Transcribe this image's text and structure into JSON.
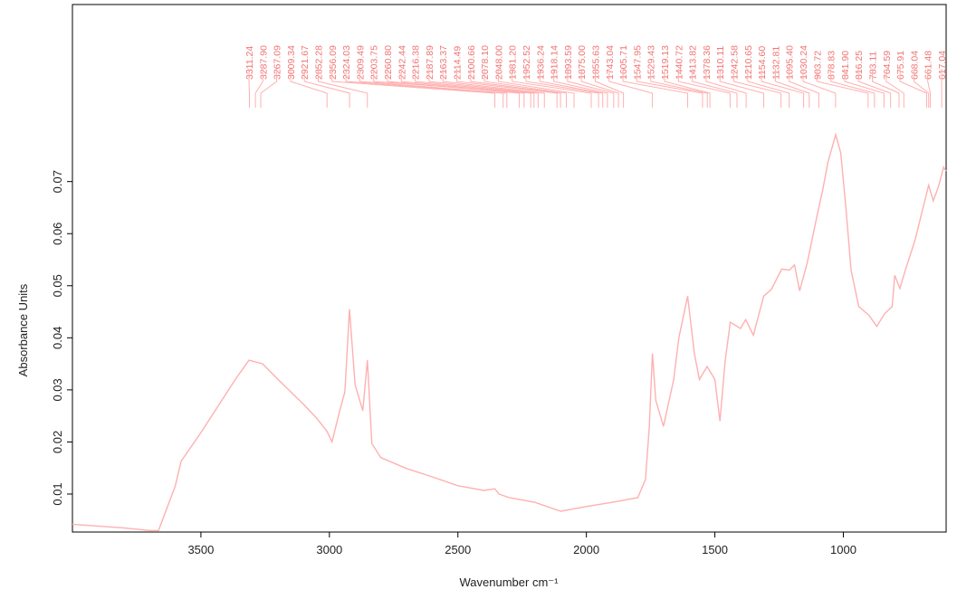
{
  "chart_data": {
    "type": "line",
    "xlabel": "Wavenumber cm⁻¹",
    "ylabel": "Absorbance Units",
    "color": "#ffb0b0",
    "peak_color": "#f07474",
    "xlim": [
      4000,
      600
    ],
    "ylim": [
      0.0027,
      0.104
    ],
    "xticks": [
      3500,
      3000,
      2500,
      2000,
      1500,
      1000
    ],
    "yticks": [
      0.01,
      0.02,
      0.03,
      0.04,
      0.05,
      0.06,
      0.07
    ],
    "x": [
      4000,
      3800,
      3700,
      3665,
      3600,
      3577,
      3500,
      3366,
      3313,
      3260,
      3200,
      3100,
      3050,
      3009,
      2990,
      2960,
      2940,
      2922,
      2900,
      2870,
      2852,
      2835,
      2800,
      2700,
      2600,
      2500,
      2400,
      2356,
      2340,
      2300,
      2200,
      2100,
      2000,
      1900,
      1800,
      1770,
      1755,
      1743,
      1730,
      1700,
      1660,
      1640,
      1606,
      1580,
      1560,
      1530,
      1500,
      1480,
      1460,
      1440,
      1400,
      1380,
      1350,
      1310,
      1280,
      1240,
      1210,
      1190,
      1170,
      1140,
      1100,
      1080,
      1060,
      1030,
      1010,
      990,
      970,
      940,
      900,
      870,
      840,
      810,
      800,
      780,
      760,
      720,
      690,
      668,
      650,
      630,
      610,
      600
    ],
    "values": [
      0.0042,
      0.0035,
      0.003,
      0.003,
      0.0115,
      0.0163,
      0.0218,
      0.032,
      0.0357,
      0.035,
      0.032,
      0.0272,
      0.0246,
      0.022,
      0.02,
      0.026,
      0.0296,
      0.0455,
      0.031,
      0.026,
      0.0357,
      0.0197,
      0.017,
      0.0149,
      0.0133,
      0.0116,
      0.0107,
      0.011,
      0.01,
      0.0093,
      0.0084,
      0.0067,
      0.0076,
      0.0084,
      0.0093,
      0.0128,
      0.023,
      0.037,
      0.028,
      0.023,
      0.032,
      0.04,
      0.048,
      0.037,
      0.032,
      0.0345,
      0.032,
      0.024,
      0.0355,
      0.043,
      0.0418,
      0.0435,
      0.0405,
      0.048,
      0.0493,
      0.0532,
      0.053,
      0.054,
      0.049,
      0.0545,
      0.064,
      0.0685,
      0.0737,
      0.079,
      0.0755,
      0.065,
      0.053,
      0.046,
      0.0443,
      0.0422,
      0.0446,
      0.046,
      0.052,
      0.0495,
      0.0528,
      0.0589,
      0.065,
      0.0693,
      0.0663,
      0.069,
      0.0728,
      0.072
    ],
    "peaks": [
      3311.24,
      {
        "value": 3287.9,
        "label": "3287.90"
      },
      3267.09,
      3009.34,
      2921.67,
      2852.28,
      2356.09,
      2324.03,
      2309.49,
      2203.75,
      {
        "value": 2260.8,
        "label": "2260.80"
      },
      2242.44,
      2216.38,
      2187.89,
      2163.37,
      2114.49,
      2100.66,
      {
        "value": 2078.1,
        "label": "2078.10"
      },
      {
        "value": 2048,
        "label": "2048.00"
      },
      {
        "value": 1981.2,
        "label": "1981.20"
      },
      1952.52,
      1936.24,
      1918.14,
      1893.59,
      {
        "value": 1875,
        "label": "1875.00"
      },
      1855.63,
      1743.04,
      1605.71,
      1547.95,
      1529.43,
      1519.13,
      1440.72,
      1413.82,
      1378.36,
      1310.11,
      1242.58,
      1210.65,
      {
        "value": 1154.6,
        "label": "1154.60"
      },
      1132.81,
      {
        "value": 1095.4,
        "label": "1095.40"
      },
      1030.24,
      903.72,
      878.83,
      {
        "value": 841.9,
        "label": "841.90"
      },
      816.25,
      783.11,
      764.59,
      675.91,
      668.04,
      661.48,
      617.04
    ]
  }
}
